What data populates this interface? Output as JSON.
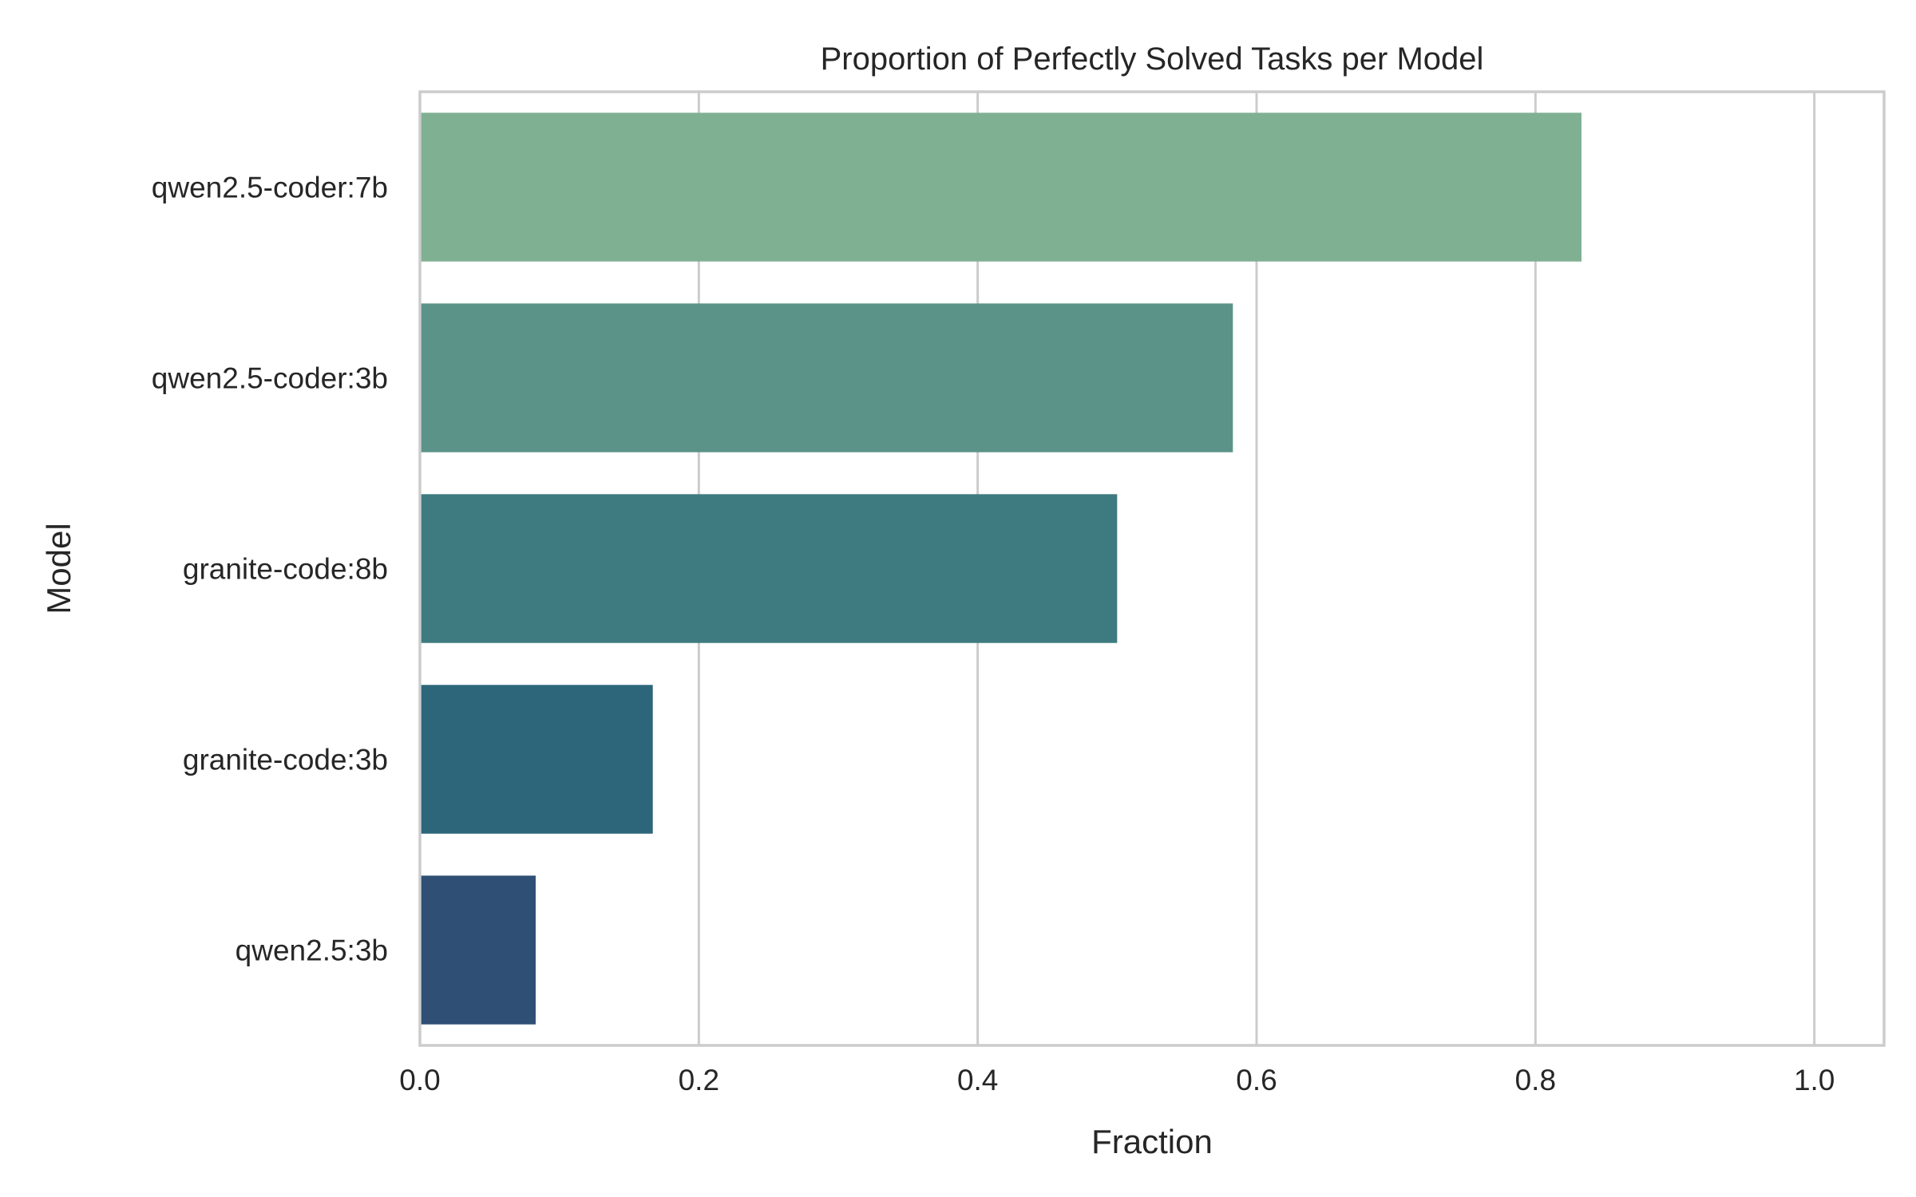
{
  "chart_data": {
    "type": "bar",
    "orientation": "horizontal",
    "title": "Proportion of Perfectly Solved Tasks per Model",
    "xlabel": "Fraction",
    "ylabel": "Model",
    "categories": [
      "qwen2.5-coder:7b",
      "qwen2.5-coder:3b",
      "granite-code:8b",
      "granite-code:3b",
      "qwen2.5:3b"
    ],
    "values": [
      0.833,
      0.583,
      0.5,
      0.167,
      0.083
    ],
    "colors": [
      "#7fb092",
      "#5b9389",
      "#3e7b80",
      "#2d667b",
      "#2f5074"
    ],
    "xlim": [
      0,
      1.05
    ],
    "xticks": [
      0.0,
      0.2,
      0.4,
      0.6,
      0.8,
      1.0
    ],
    "xtick_labels": [
      "0.0",
      "0.2",
      "0.4",
      "0.6",
      "0.8",
      "1.0"
    ],
    "grid": "vertical",
    "frame_color": "#cccccc"
  }
}
